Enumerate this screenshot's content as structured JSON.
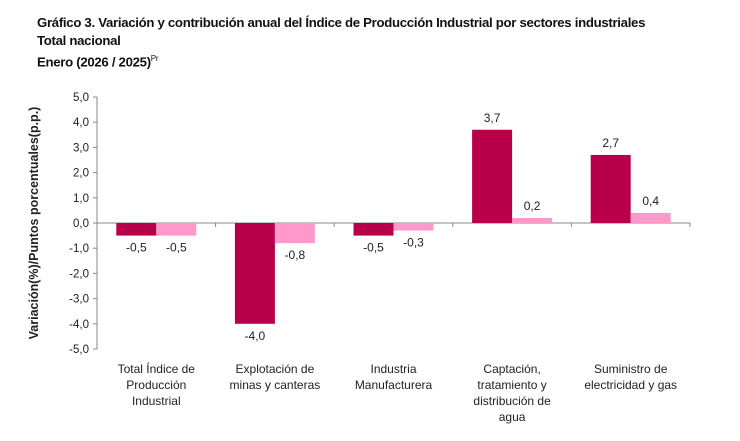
{
  "chart_data": {
    "type": "bar",
    "title": "Gráfico 3. Variación y contribución anual del Índice de Producción Industrial por sectores industriales",
    "subtitle": "Total nacional",
    "period": "Enero (2026 / 2025)",
    "period_superscript": "Pr",
    "ylabel": "Variación(%)/Puntos porcentuales(p.p.)",
    "xlabel": "",
    "ylim": [
      -5.0,
      5.0
    ],
    "yticks": [
      "5,0",
      "4,0",
      "3,0",
      "2,0",
      "1,0",
      "0,0",
      "-1,0",
      "-2,0",
      "-3,0",
      "-4,0",
      "-5,0"
    ],
    "grid": false,
    "legend": "none",
    "categories": [
      [
        "Total Índice de",
        "Producción",
        "Industrial"
      ],
      [
        "Explotación de",
        "minas y canteras"
      ],
      [
        "Industria",
        "Manufacturera"
      ],
      [
        "Captación,",
        "tratamiento y",
        "distribución de",
        "agua"
      ],
      [
        "Suministro de",
        "electricidad y gas"
      ]
    ],
    "series": [
      {
        "values": [
          -0.5,
          -4.0,
          -0.5,
          3.7,
          2.7
        ],
        "labels": [
          "-0,5",
          "-4,0",
          "-0,5",
          "3,7",
          "2,7"
        ],
        "color": "#B8004A"
      },
      {
        "values": [
          -0.5,
          -0.8,
          -0.3,
          0.2,
          0.4
        ],
        "labels": [
          "-0,5",
          "-0,8",
          "-0,3",
          "0,2",
          "0,4"
        ],
        "color": "#FF99CC"
      }
    ]
  }
}
